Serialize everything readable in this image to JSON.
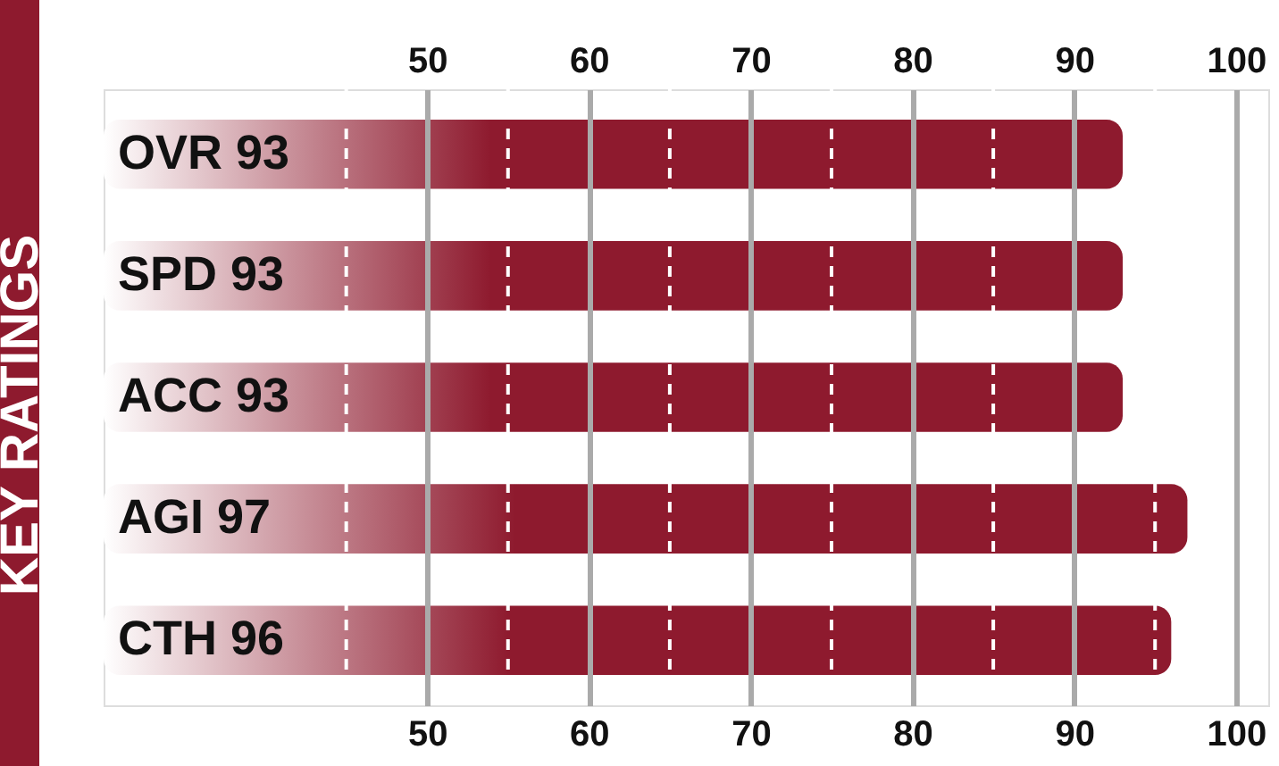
{
  "chart_data": {
    "type": "bar",
    "orientation": "horizontal",
    "title": "KEY RATINGS",
    "categories": [
      "OVR 93",
      "SPD 93",
      "ACC 93",
      "AGI 97",
      "CTH 96"
    ],
    "series": [
      {
        "color": "#8e1a2e",
        "values": [
          93,
          93,
          93,
          97,
          96
        ]
      }
    ],
    "xlim": [
      30,
      102
    ],
    "xticks": [
      50,
      60,
      70,
      80,
      90,
      100
    ],
    "x2lim": [
      30,
      102
    ],
    "x2ticks": [
      50,
      60,
      70,
      80,
      90,
      100
    ],
    "grid": "x",
    "ref_lines": [
      {
        "axis": "x",
        "value": 45,
        "color": "#ffffff",
        "line_style": "dashed"
      },
      {
        "axis": "x",
        "value": 55,
        "color": "#ffffff",
        "line_style": "dashed"
      },
      {
        "axis": "x",
        "value": 65,
        "color": "#ffffff",
        "line_style": "dashed"
      },
      {
        "axis": "x",
        "value": 75,
        "color": "#ffffff",
        "line_style": "dashed"
      },
      {
        "axis": "x",
        "value": 85,
        "color": "#ffffff",
        "line_style": "dashed"
      },
      {
        "axis": "x",
        "value": 95,
        "color": "#ffffff",
        "line_style": "dashed"
      }
    ]
  }
}
